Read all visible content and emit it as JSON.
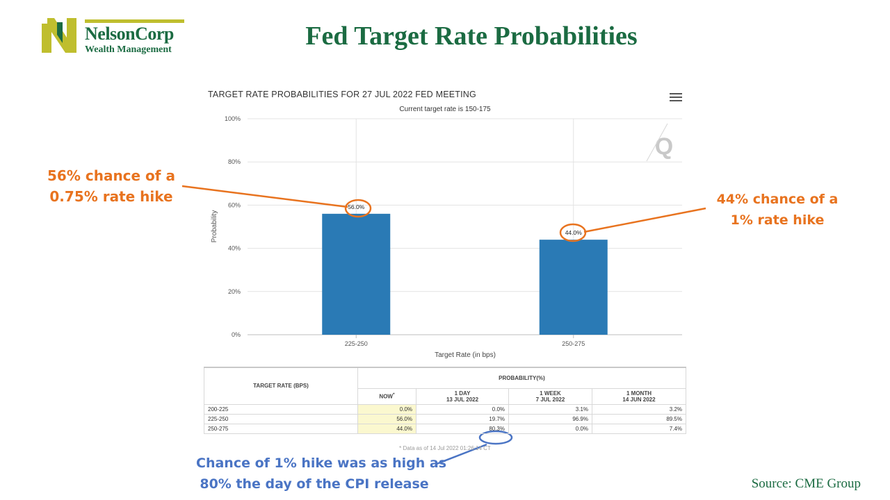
{
  "page": {
    "title": "Fed Target Rate Probabilities",
    "source": "Source: CME Group"
  },
  "logo": {
    "name": "NelsonCorp",
    "subtitle": "Wealth Management"
  },
  "colors": {
    "brand_green": "#1b6b42",
    "logo_yellow": "#bfbe2e",
    "bar": "#2a7ab5",
    "callout_orange": "#e8731f",
    "callout_blue": "#4a74c4",
    "now_highlight": "#fbf8cf"
  },
  "chart_data": {
    "type": "bar",
    "title": "TARGET RATE PROBABILITIES FOR 27 JUL 2022 FED MEETING",
    "subtitle": "Current target rate is 150-175",
    "categories": [
      "225-250",
      "250-275"
    ],
    "values": [
      56.0,
      44.0
    ],
    "data_labels": [
      "56.0%",
      "44.0%"
    ],
    "xlabel": "Target Rate (in bps)",
    "ylabel": "Probability",
    "ylim": [
      0,
      100
    ],
    "yticks": [
      "0%",
      "20%",
      "40%",
      "60%",
      "80%",
      "100%"
    ],
    "grid": true,
    "watermark": "Q"
  },
  "table": {
    "header_target": "TARGET RATE (BPS)",
    "header_prob": "PROBABILITY(%)",
    "columns": [
      {
        "line1": "NOW",
        "line2": "",
        "marker": "*"
      },
      {
        "line1": "1 DAY",
        "line2": "13 JUL 2022",
        "marker": ""
      },
      {
        "line1": "1 WEEK",
        "line2": "7 JUL 2022",
        "marker": ""
      },
      {
        "line1": "1 MONTH",
        "line2": "14 JUN 2022",
        "marker": ""
      }
    ],
    "rows": [
      {
        "rate": "200-225",
        "now": "0.0%",
        "day": "0.0%",
        "week": "3.1%",
        "month": "3.2%"
      },
      {
        "rate": "225-250",
        "now": "56.0%",
        "day": "19.7%",
        "week": "96.9%",
        "month": "89.5%"
      },
      {
        "rate": "250-275",
        "now": "44.0%",
        "day": "80.3%",
        "week": "0.0%",
        "month": "7.4%"
      }
    ],
    "footnote": "* Data as of 14 Jul 2022 01:26:14 CT"
  },
  "callouts": {
    "left": {
      "line1": "56% chance of a",
      "line2": "0.75% rate hike"
    },
    "right": {
      "line1": "44% chance of a",
      "line2": "1% rate hike"
    },
    "bottom": {
      "line1": "Chance of 1% hike was as high as",
      "line2": "80% the day of the CPI release"
    }
  }
}
